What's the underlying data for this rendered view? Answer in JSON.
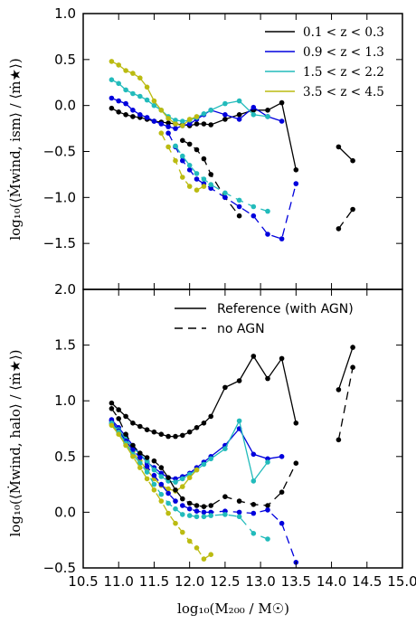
{
  "chart_data": [
    {
      "type": "line",
      "panel": "top",
      "ylabel": "log₁₀(⟨Ṁwind, ism⟩ / ⟨ṁ★⟩)",
      "xlabel": "",
      "xlim": [
        10.5,
        15.0
      ],
      "ylim": [
        -2.0,
        1.0
      ],
      "y_inverted": true,
      "ytick_labels": [
        "1.0",
        "0.5",
        "0.0",
        "−0.5",
        "−1.0",
        "−1.5",
        "2.0"
      ],
      "legend": {
        "placement": "top-right",
        "entries": [
          "0.1 < z < 0.3",
          "0.9 < z < 1.3",
          "1.5 < z < 2.2",
          "3.5 < z < 4.5"
        ]
      },
      "colors": {
        "z01": "#000000",
        "z09": "#0000dd",
        "z15": "#22bbbb",
        "z35": "#bbbb11"
      },
      "series": [
        {
          "name": "0.1 < z < 0.3",
          "color_key": "z01",
          "dashed": false,
          "x": [
            10.9,
            11.0,
            11.1,
            11.2,
            11.3,
            11.4,
            11.5,
            11.6,
            11.7,
            11.8,
            11.9,
            12.0,
            12.1,
            12.2,
            12.3,
            12.5,
            12.7,
            12.9,
            13.1,
            13.3,
            13.5
          ],
          "y": [
            -0.03,
            -0.07,
            -0.1,
            -0.12,
            -0.13,
            -0.15,
            -0.17,
            -0.18,
            -0.19,
            -0.2,
            -0.21,
            -0.22,
            -0.2,
            -0.2,
            -0.21,
            -0.15,
            -0.1,
            -0.05,
            -0.05,
            0.03,
            -0.7
          ]
        },
        {
          "name": "0.1 < z < 0.3 (segment)",
          "color_key": "z01",
          "dashed": false,
          "x": [
            14.1,
            14.3
          ],
          "y": [
            -0.45,
            -0.6
          ]
        },
        {
          "name": "0.9 < z < 1.3",
          "color_key": "z09",
          "dashed": false,
          "x": [
            10.9,
            11.0,
            11.1,
            11.2,
            11.3,
            11.4,
            11.5,
            11.6,
            11.7,
            11.8,
            11.9,
            12.0,
            12.1,
            12.2,
            12.3,
            12.5,
            12.7,
            12.9,
            13.1,
            13.3
          ],
          "y": [
            0.08,
            0.05,
            0.02,
            -0.05,
            -0.1,
            -0.13,
            -0.17,
            -0.2,
            -0.23,
            -0.25,
            -0.22,
            -0.2,
            -0.15,
            -0.1,
            -0.05,
            -0.1,
            -0.15,
            -0.02,
            -0.12,
            -0.17
          ]
        },
        {
          "name": "1.5 < z < 2.2",
          "color_key": "z15",
          "dashed": false,
          "x": [
            10.9,
            11.0,
            11.1,
            11.2,
            11.3,
            11.4,
            11.5,
            11.6,
            11.7,
            11.8,
            11.9,
            12.0,
            12.1,
            12.2,
            12.3,
            12.5,
            12.7,
            12.9,
            13.1
          ],
          "y": [
            0.28,
            0.24,
            0.17,
            0.13,
            0.1,
            0.06,
            0.0,
            -0.05,
            -0.12,
            -0.16,
            -0.17,
            -0.16,
            -0.13,
            -0.09,
            -0.05,
            0.02,
            0.05,
            -0.1,
            -0.12
          ]
        },
        {
          "name": "3.5 < z < 4.5",
          "color_key": "z35",
          "dashed": false,
          "x": [
            10.9,
            11.0,
            11.1,
            11.2,
            11.3,
            11.4,
            11.5,
            11.6,
            11.7,
            11.8,
            11.9,
            12.0,
            12.1
          ],
          "y": [
            0.48,
            0.44,
            0.38,
            0.35,
            0.3,
            0.2,
            0.05,
            -0.05,
            -0.14,
            -0.2,
            -0.22,
            -0.15,
            -0.12
          ]
        },
        {
          "name": "no AGN 0.1 < z < 0.3",
          "color_key": "z01",
          "dashed": true,
          "x": [
            11.9,
            12.0,
            12.1,
            12.2,
            12.3,
            12.5,
            12.7
          ],
          "y": [
            -0.38,
            -0.42,
            -0.48,
            -0.58,
            -0.75,
            -1.0,
            -1.2
          ]
        },
        {
          "name": "no AGN 0.1 < z < 0.3 (segment)",
          "color_key": "z01",
          "dashed": true,
          "x": [
            14.1,
            14.3
          ],
          "y": [
            -1.34,
            -1.13
          ]
        },
        {
          "name": "no AGN 0.9 < z < 1.3",
          "color_key": "z09",
          "dashed": true,
          "x": [
            11.7,
            11.8,
            11.9,
            12.0,
            12.1,
            12.2,
            12.3,
            12.5,
            12.7,
            12.9,
            13.1,
            13.3,
            13.5
          ],
          "y": [
            -0.3,
            -0.45,
            -0.6,
            -0.7,
            -0.8,
            -0.85,
            -0.9,
            -1.0,
            -1.1,
            -1.2,
            -1.4,
            -1.45,
            -0.85
          ]
        },
        {
          "name": "no AGN 1.5 < z < 2.2",
          "color_key": "z15",
          "dashed": true,
          "x": [
            11.8,
            11.9,
            12.0,
            12.1,
            12.2,
            12.3,
            12.5,
            12.7,
            12.9,
            13.1
          ],
          "y": [
            -0.44,
            -0.55,
            -0.65,
            -0.74,
            -0.8,
            -0.86,
            -0.95,
            -1.03,
            -1.1,
            -1.15
          ]
        },
        {
          "name": "no AGN 3.5 < z < 4.5",
          "color_key": "z35",
          "dashed": true,
          "x": [
            11.6,
            11.7,
            11.8,
            11.9,
            12.0,
            12.1,
            12.2
          ],
          "y": [
            -0.3,
            -0.45,
            -0.6,
            -0.78,
            -0.88,
            -0.92,
            -0.88
          ]
        }
      ]
    },
    {
      "type": "line",
      "panel": "bottom",
      "ylabel": "log₁₀(⟨Ṁwind, halo⟩ / ⟨ṁ★⟩)",
      "xlabel": "log₁₀(M₂₀₀ / M☉)",
      "xlim": [
        10.5,
        15.0
      ],
      "ylim": [
        -0.5,
        2.0
      ],
      "ytick_labels": [
        "1.5",
        "1.0",
        "0.5",
        "0.0",
        "−0.5"
      ],
      "xtick_labels": [
        "10.5",
        "11.0",
        "11.5",
        "12.0",
        "12.5",
        "13.0",
        "13.5",
        "14.0",
        "14.5",
        "15.0"
      ],
      "legend": {
        "placement": "top-right",
        "entries": [
          "Reference (with AGN)",
          "no AGN"
        ]
      },
      "series": [
        {
          "name": "Reference (with AGN) 0.1 < z < 0.3",
          "color_key": "z01",
          "dashed": false,
          "x": [
            10.9,
            11.0,
            11.1,
            11.2,
            11.3,
            11.4,
            11.5,
            11.6,
            11.7,
            11.8,
            11.9,
            12.0,
            12.1,
            12.2,
            12.3,
            12.5,
            12.7,
            12.9,
            13.1,
            13.3,
            13.5
          ],
          "y": [
            0.98,
            0.92,
            0.86,
            0.8,
            0.77,
            0.74,
            0.72,
            0.7,
            0.68,
            0.68,
            0.69,
            0.72,
            0.76,
            0.8,
            0.86,
            1.12,
            1.18,
            1.4,
            1.2,
            1.38,
            0.8
          ]
        },
        {
          "name": "Reference (with AGN) 0.1 < z < 0.3 (segment)",
          "color_key": "z01",
          "dashed": false,
          "x": [
            14.1,
            14.3
          ],
          "y": [
            1.1,
            1.48
          ]
        },
        {
          "name": "Reference (with AGN) 0.9 < z < 1.3",
          "color_key": "z09",
          "dashed": false,
          "x": [
            10.9,
            11.0,
            11.1,
            11.2,
            11.3,
            11.4,
            11.5,
            11.6,
            11.7,
            11.8,
            11.9,
            12.0,
            12.1,
            12.2,
            12.3,
            12.5,
            12.7,
            12.9,
            13.1,
            13.3
          ],
          "y": [
            0.83,
            0.76,
            0.68,
            0.6,
            0.52,
            0.45,
            0.4,
            0.35,
            0.31,
            0.3,
            0.32,
            0.35,
            0.4,
            0.45,
            0.5,
            0.6,
            0.75,
            0.52,
            0.48,
            0.5
          ]
        },
        {
          "name": "Reference (with AGN) 1.5 < z < 2.2",
          "color_key": "z15",
          "dashed": false,
          "x": [
            10.9,
            11.0,
            11.1,
            11.2,
            11.3,
            11.4,
            11.5,
            11.6,
            11.7,
            11.8,
            11.9,
            12.0,
            12.1,
            12.2,
            12.3,
            12.5,
            12.7,
            12.9,
            13.1
          ],
          "y": [
            0.8,
            0.74,
            0.66,
            0.58,
            0.52,
            0.46,
            0.38,
            0.32,
            0.28,
            0.27,
            0.3,
            0.34,
            0.38,
            0.43,
            0.48,
            0.57,
            0.82,
            0.28,
            0.45
          ]
        },
        {
          "name": "Reference (with AGN) 3.5 < z < 4.5",
          "color_key": "z35",
          "dashed": false,
          "x": [
            10.9,
            11.0,
            11.1,
            11.2,
            11.3,
            11.4,
            11.5,
            11.6,
            11.7,
            11.8,
            11.9,
            12.0,
            12.1
          ],
          "y": [
            0.79,
            0.72,
            0.62,
            0.54,
            0.46,
            0.38,
            0.3,
            0.24,
            0.21,
            0.19,
            0.23,
            0.31,
            0.38
          ]
        },
        {
          "name": "no AGN 0.1 < z < 0.3",
          "color_key": "z01",
          "dashed": true,
          "x": [
            10.9,
            11.0,
            11.1,
            11.2,
            11.3,
            11.4,
            11.5,
            11.6,
            11.7,
            11.8,
            11.9,
            12.0,
            12.1,
            12.2,
            12.3,
            12.5,
            12.7,
            12.9,
            13.1,
            13.3,
            13.5
          ],
          "y": [
            0.93,
            0.84,
            0.7,
            0.6,
            0.53,
            0.49,
            0.46,
            0.4,
            0.31,
            0.2,
            0.12,
            0.08,
            0.06,
            0.05,
            0.06,
            0.14,
            0.1,
            0.07,
            0.06,
            0.18,
            0.44
          ]
        },
        {
          "name": "no AGN 0.1 < z < 0.3 (segment)",
          "color_key": "z01",
          "dashed": true,
          "x": [
            14.1,
            14.3
          ],
          "y": [
            0.65,
            1.3
          ]
        },
        {
          "name": "no AGN 0.9 < z < 1.3",
          "color_key": "z09",
          "dashed": true,
          "x": [
            10.9,
            11.0,
            11.1,
            11.2,
            11.3,
            11.4,
            11.5,
            11.6,
            11.7,
            11.8,
            11.9,
            12.0,
            12.1,
            12.2,
            12.3,
            12.5,
            12.7,
            12.9,
            13.1,
            13.3,
            13.5
          ],
          "y": [
            0.82,
            0.73,
            0.64,
            0.56,
            0.49,
            0.41,
            0.33,
            0.25,
            0.17,
            0.1,
            0.06,
            0.03,
            0.01,
            0.0,
            0.0,
            0.01,
            0.0,
            -0.01,
            0.02,
            -0.1,
            -0.45
          ]
        },
        {
          "name": "no AGN 1.5 < z < 2.2",
          "color_key": "z15",
          "dashed": true,
          "x": [
            10.9,
            11.0,
            11.1,
            11.2,
            11.3,
            11.4,
            11.5,
            11.6,
            11.7,
            11.8,
            11.9,
            12.0,
            12.1,
            12.2,
            12.3,
            12.5,
            12.7,
            12.9,
            13.1
          ],
          "y": [
            0.8,
            0.72,
            0.62,
            0.52,
            0.44,
            0.36,
            0.25,
            0.16,
            0.08,
            0.03,
            -0.02,
            -0.03,
            -0.04,
            -0.04,
            -0.03,
            -0.02,
            -0.04,
            -0.19,
            -0.24
          ]
        },
        {
          "name": "no AGN 3.5 < z < 4.5",
          "color_key": "z35",
          "dashed": true,
          "x": [
            10.9,
            11.0,
            11.1,
            11.2,
            11.3,
            11.4,
            11.5,
            11.6,
            11.7,
            11.8,
            11.9,
            12.0,
            12.1,
            12.2,
            12.3
          ],
          "y": [
            0.78,
            0.7,
            0.6,
            0.5,
            0.4,
            0.3,
            0.2,
            0.1,
            -0.01,
            -0.1,
            -0.18,
            -0.26,
            -0.32,
            -0.42,
            -0.38
          ]
        }
      ]
    }
  ]
}
